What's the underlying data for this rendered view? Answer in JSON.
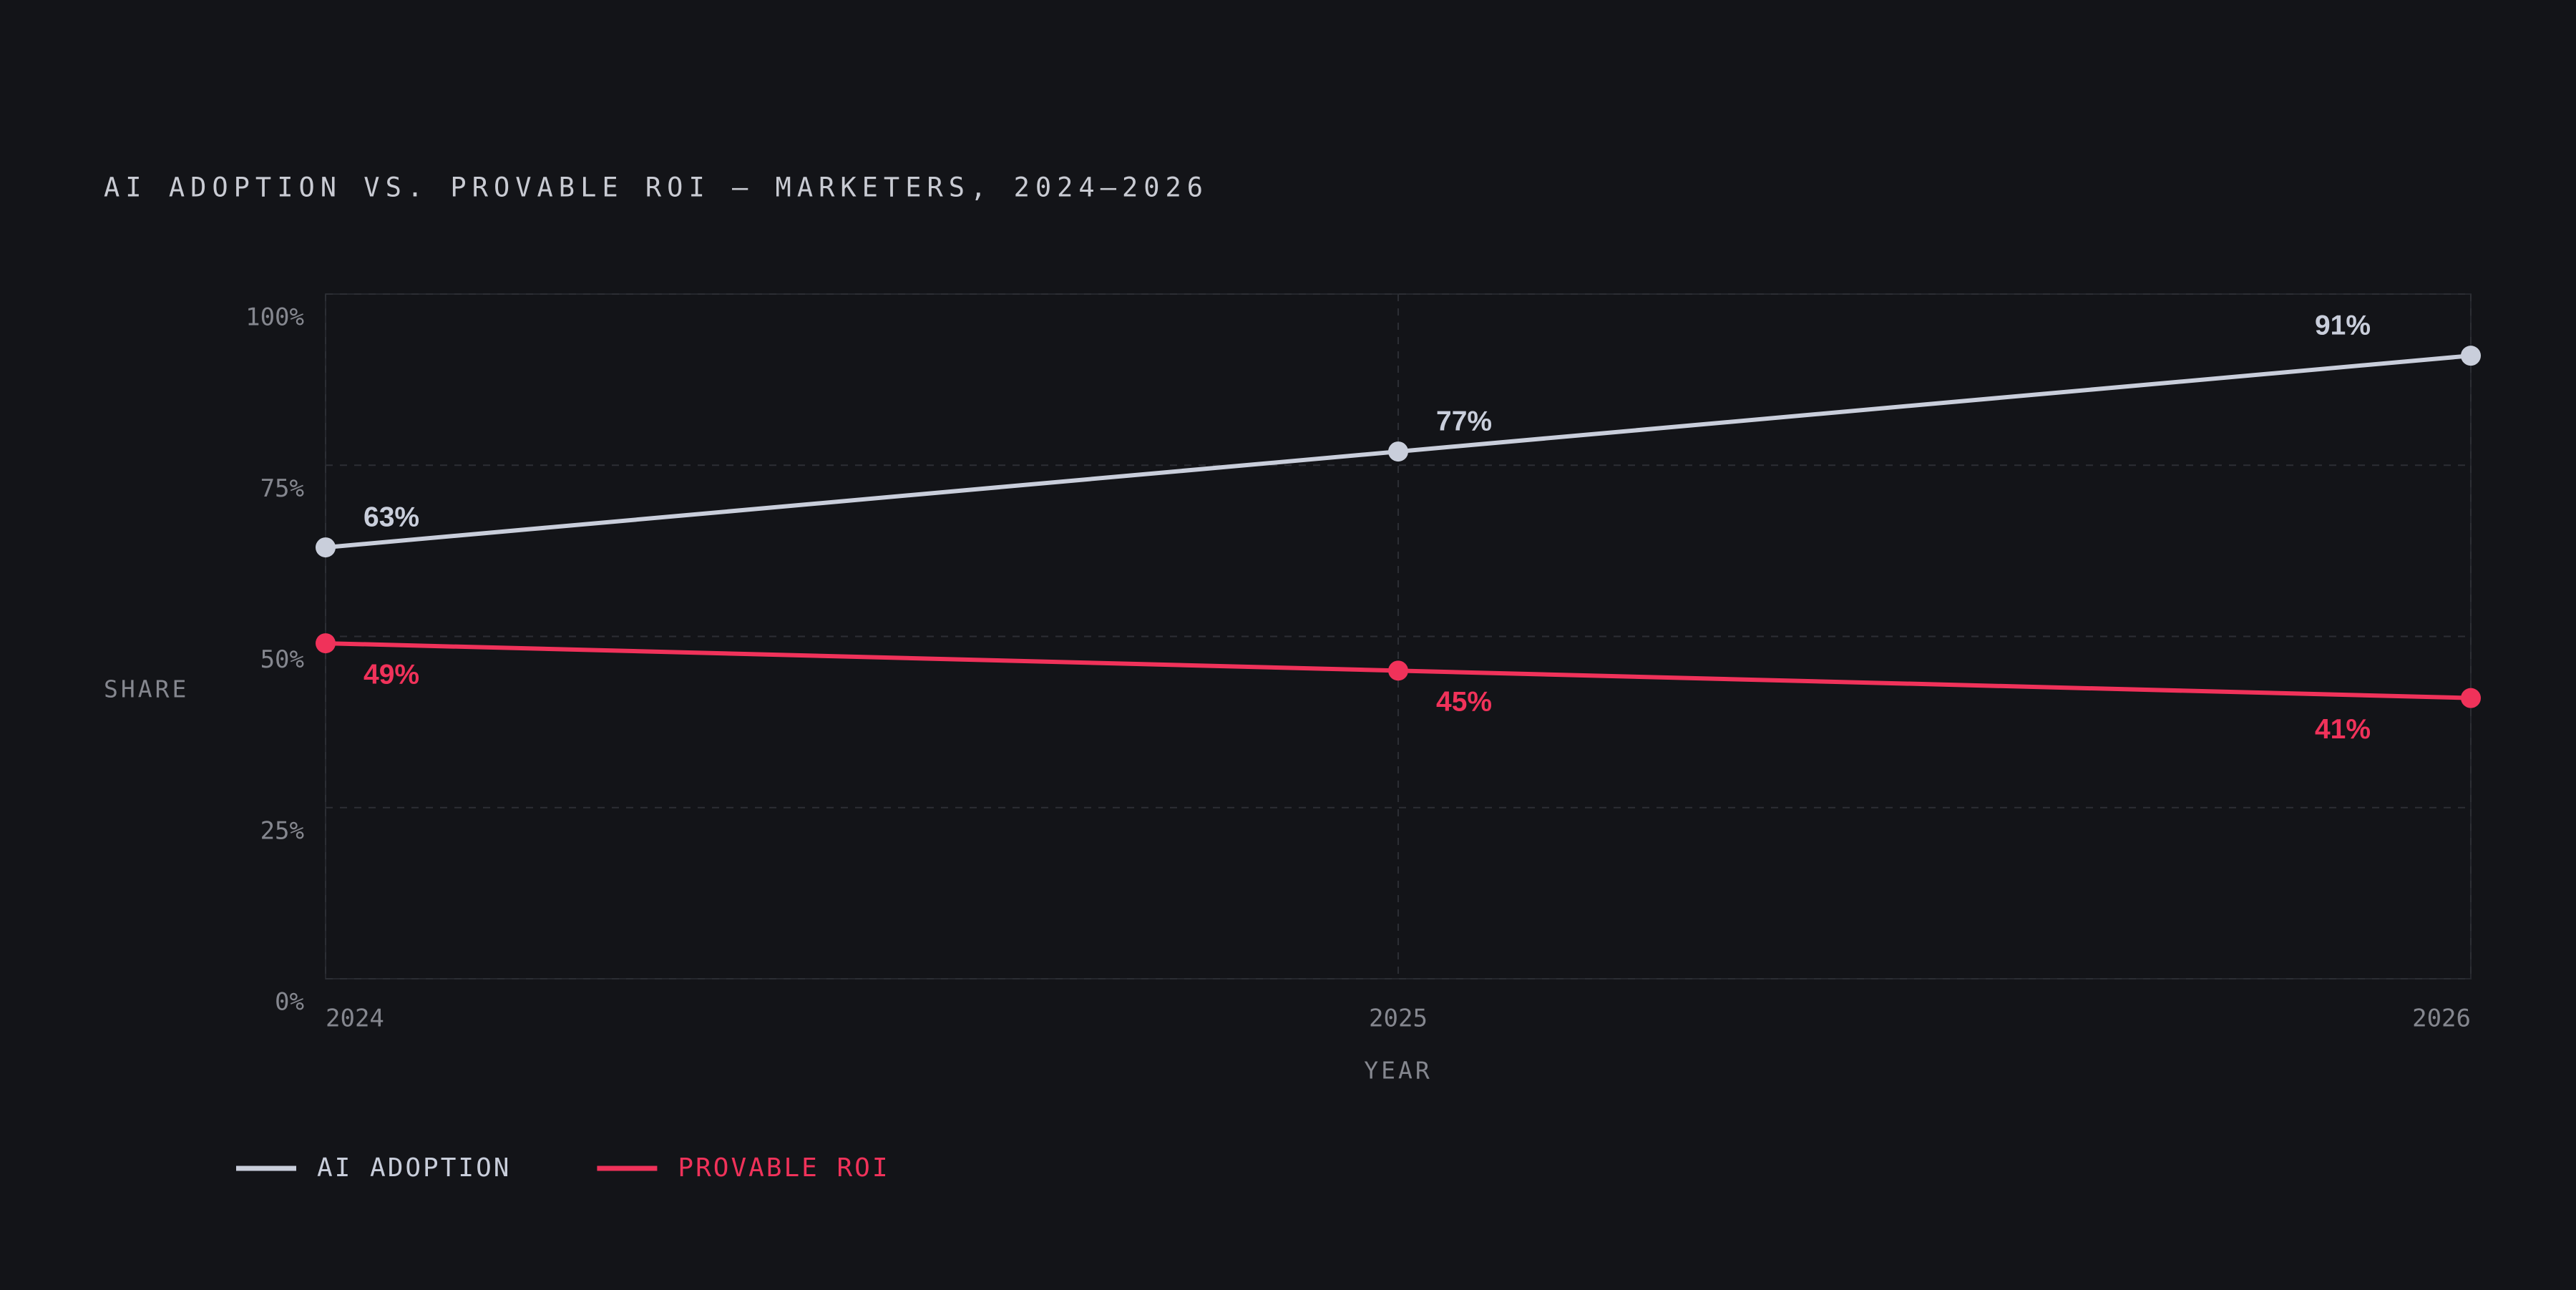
{
  "chart_data": {
    "type": "line",
    "title": "AI ADOPTION VS. PROVABLE ROI — MARKETERS, 2024–2026",
    "x_label": "YEAR",
    "y_label": "SHARE",
    "x": [
      2024,
      2025,
      2026
    ],
    "xlim": [
      2024,
      2026
    ],
    "xticks": [
      2024,
      2025,
      2026
    ],
    "ylim": [
      0,
      100
    ],
    "yticks": [
      {
        "value": 0,
        "label": "0%"
      },
      {
        "value": 25,
        "label": "25%"
      },
      {
        "value": 50,
        "label": "50%"
      },
      {
        "value": 75,
        "label": "75%"
      },
      {
        "value": 100,
        "label": "100%"
      }
    ],
    "grid": true,
    "legend": "bottom-left",
    "series": [
      {
        "name": "AI ADOPTION",
        "color": "#c9cedb",
        "values": [
          63,
          77,
          91
        ],
        "value_labels": [
          "63%",
          "77%",
          "91%"
        ],
        "label_side": "above"
      },
      {
        "name": "PROVABLE ROI",
        "color": "#f0325a",
        "values": [
          49,
          45,
          41
        ],
        "value_labels": [
          "49%",
          "45%",
          "41%"
        ],
        "label_side": "below"
      }
    ]
  }
}
